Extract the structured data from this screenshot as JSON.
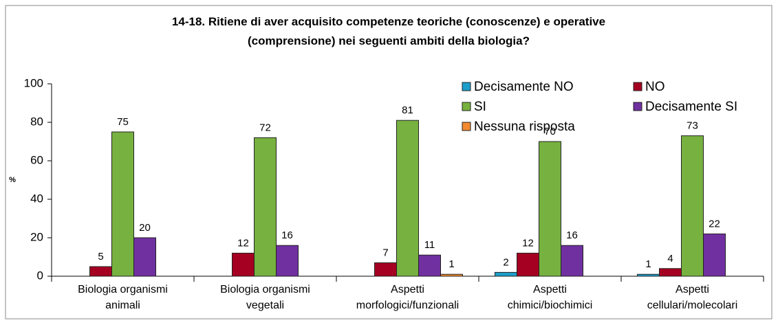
{
  "chart_data": {
    "type": "bar",
    "title": "14-18. Ritiene di aver acquisito competenze teoriche (conoscenze) e operative\n(comprensione) nei seguenti ambiti della biologia?",
    "y_label": "%",
    "categories": [
      "Biologia organismi\nanimali",
      "Biologia organismi\nvegetali",
      "Aspetti\nmorfologici/funzionali",
      "Aspetti\nchimici/biochimici",
      "Aspetti\ncellulari/molecolari"
    ],
    "series": [
      {
        "name": "Decisamente NO",
        "color": "#1c9fcb",
        "values": [
          null,
          null,
          null,
          2,
          1
        ]
      },
      {
        "name": "NO",
        "color": "#a50021",
        "values": [
          5,
          12,
          7,
          12,
          4
        ]
      },
      {
        "name": "SI",
        "color": "#77b140",
        "values": [
          75,
          72,
          81,
          70,
          73
        ]
      },
      {
        "name": "Decisamente SI",
        "color": "#7030a0",
        "values": [
          20,
          16,
          11,
          16,
          22
        ]
      },
      {
        "name": "Nessuna risposta",
        "color": "#f28a30",
        "values": [
          null,
          null,
          1,
          null,
          null
        ]
      }
    ],
    "ylim": [
      0,
      100
    ],
    "yticks": [
      0,
      20,
      40,
      60,
      80,
      100
    ],
    "grid": false,
    "legend": "top-right"
  }
}
